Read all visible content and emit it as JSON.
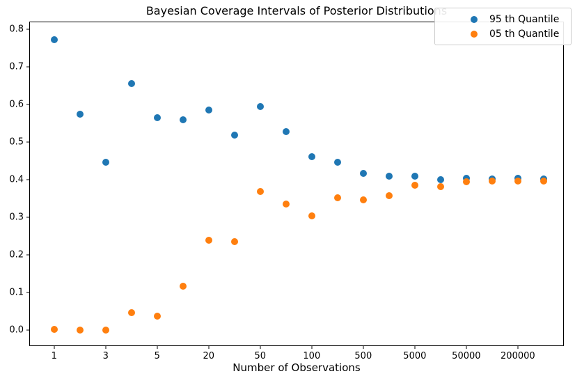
{
  "figure": {
    "title": "Bayesian Coverage Intervals of Posterior Distributions",
    "xlabel": "Number of Observations"
  },
  "legend": {
    "position": "upper-right",
    "items": [
      {
        "label": "95 th Quantile",
        "color": "#1f77b4"
      },
      {
        "label": "05 th Quantile",
        "color": "#ff7f0e"
      }
    ]
  },
  "colors": {
    "background": "#ffffff",
    "axis": "#000000",
    "series_95": "#1f77b4",
    "series_05": "#ff7f0e",
    "legend_border": "#cccccc"
  },
  "chart_data": {
    "type": "scatter",
    "title": "Bayesian Coverage Intervals of Posterior Distributions",
    "xlabel": "Number of Observations",
    "ylabel": "",
    "grid": false,
    "legend_position": "upper right",
    "x_axis_note": "20 evenly spaced sample-size slots; labels shown on alternate slots",
    "x_slots": [
      0,
      1,
      2,
      3,
      4,
      5,
      6,
      7,
      8,
      9,
      10,
      11,
      12,
      13,
      14,
      15,
      16,
      17,
      18,
      19
    ],
    "x_tick_slots": [
      0,
      2,
      4,
      6,
      8,
      10,
      12,
      14,
      16,
      18
    ],
    "x_tick_labels": [
      "1",
      "3",
      "5",
      "20",
      "50",
      "100",
      "500",
      "5000",
      "50000",
      "200000"
    ],
    "y_ticks": [
      0.0,
      0.1,
      0.2,
      0.3,
      0.4,
      0.5,
      0.6,
      0.7,
      0.8
    ],
    "y_tick_labels": [
      "0.0",
      "0.1",
      "0.2",
      "0.3",
      "0.4",
      "0.5",
      "0.6",
      "0.7",
      "0.8"
    ],
    "xlim_slots": [
      -0.94,
      19.76
    ],
    "ylim": [
      -0.041,
      0.818
    ],
    "marker_size_px": 10,
    "series": [
      {
        "name": "95 th Quantile",
        "color": "#1f77b4",
        "values": [
          0.772,
          0.573,
          0.446,
          0.655,
          0.564,
          0.559,
          0.584,
          0.518,
          0.594,
          0.527,
          0.461,
          0.446,
          0.417,
          0.409,
          0.408,
          0.4,
          0.403,
          0.402,
          0.403,
          0.402
        ]
      },
      {
        "name": "05 th Quantile",
        "color": "#ff7f0e",
        "values": [
          0.002,
          0.0,
          0.0,
          0.046,
          0.037,
          0.117,
          0.238,
          0.234,
          0.368,
          0.335,
          0.304,
          0.351,
          0.345,
          0.357,
          0.385,
          0.381,
          0.394,
          0.396,
          0.396,
          0.395
        ]
      }
    ]
  }
}
